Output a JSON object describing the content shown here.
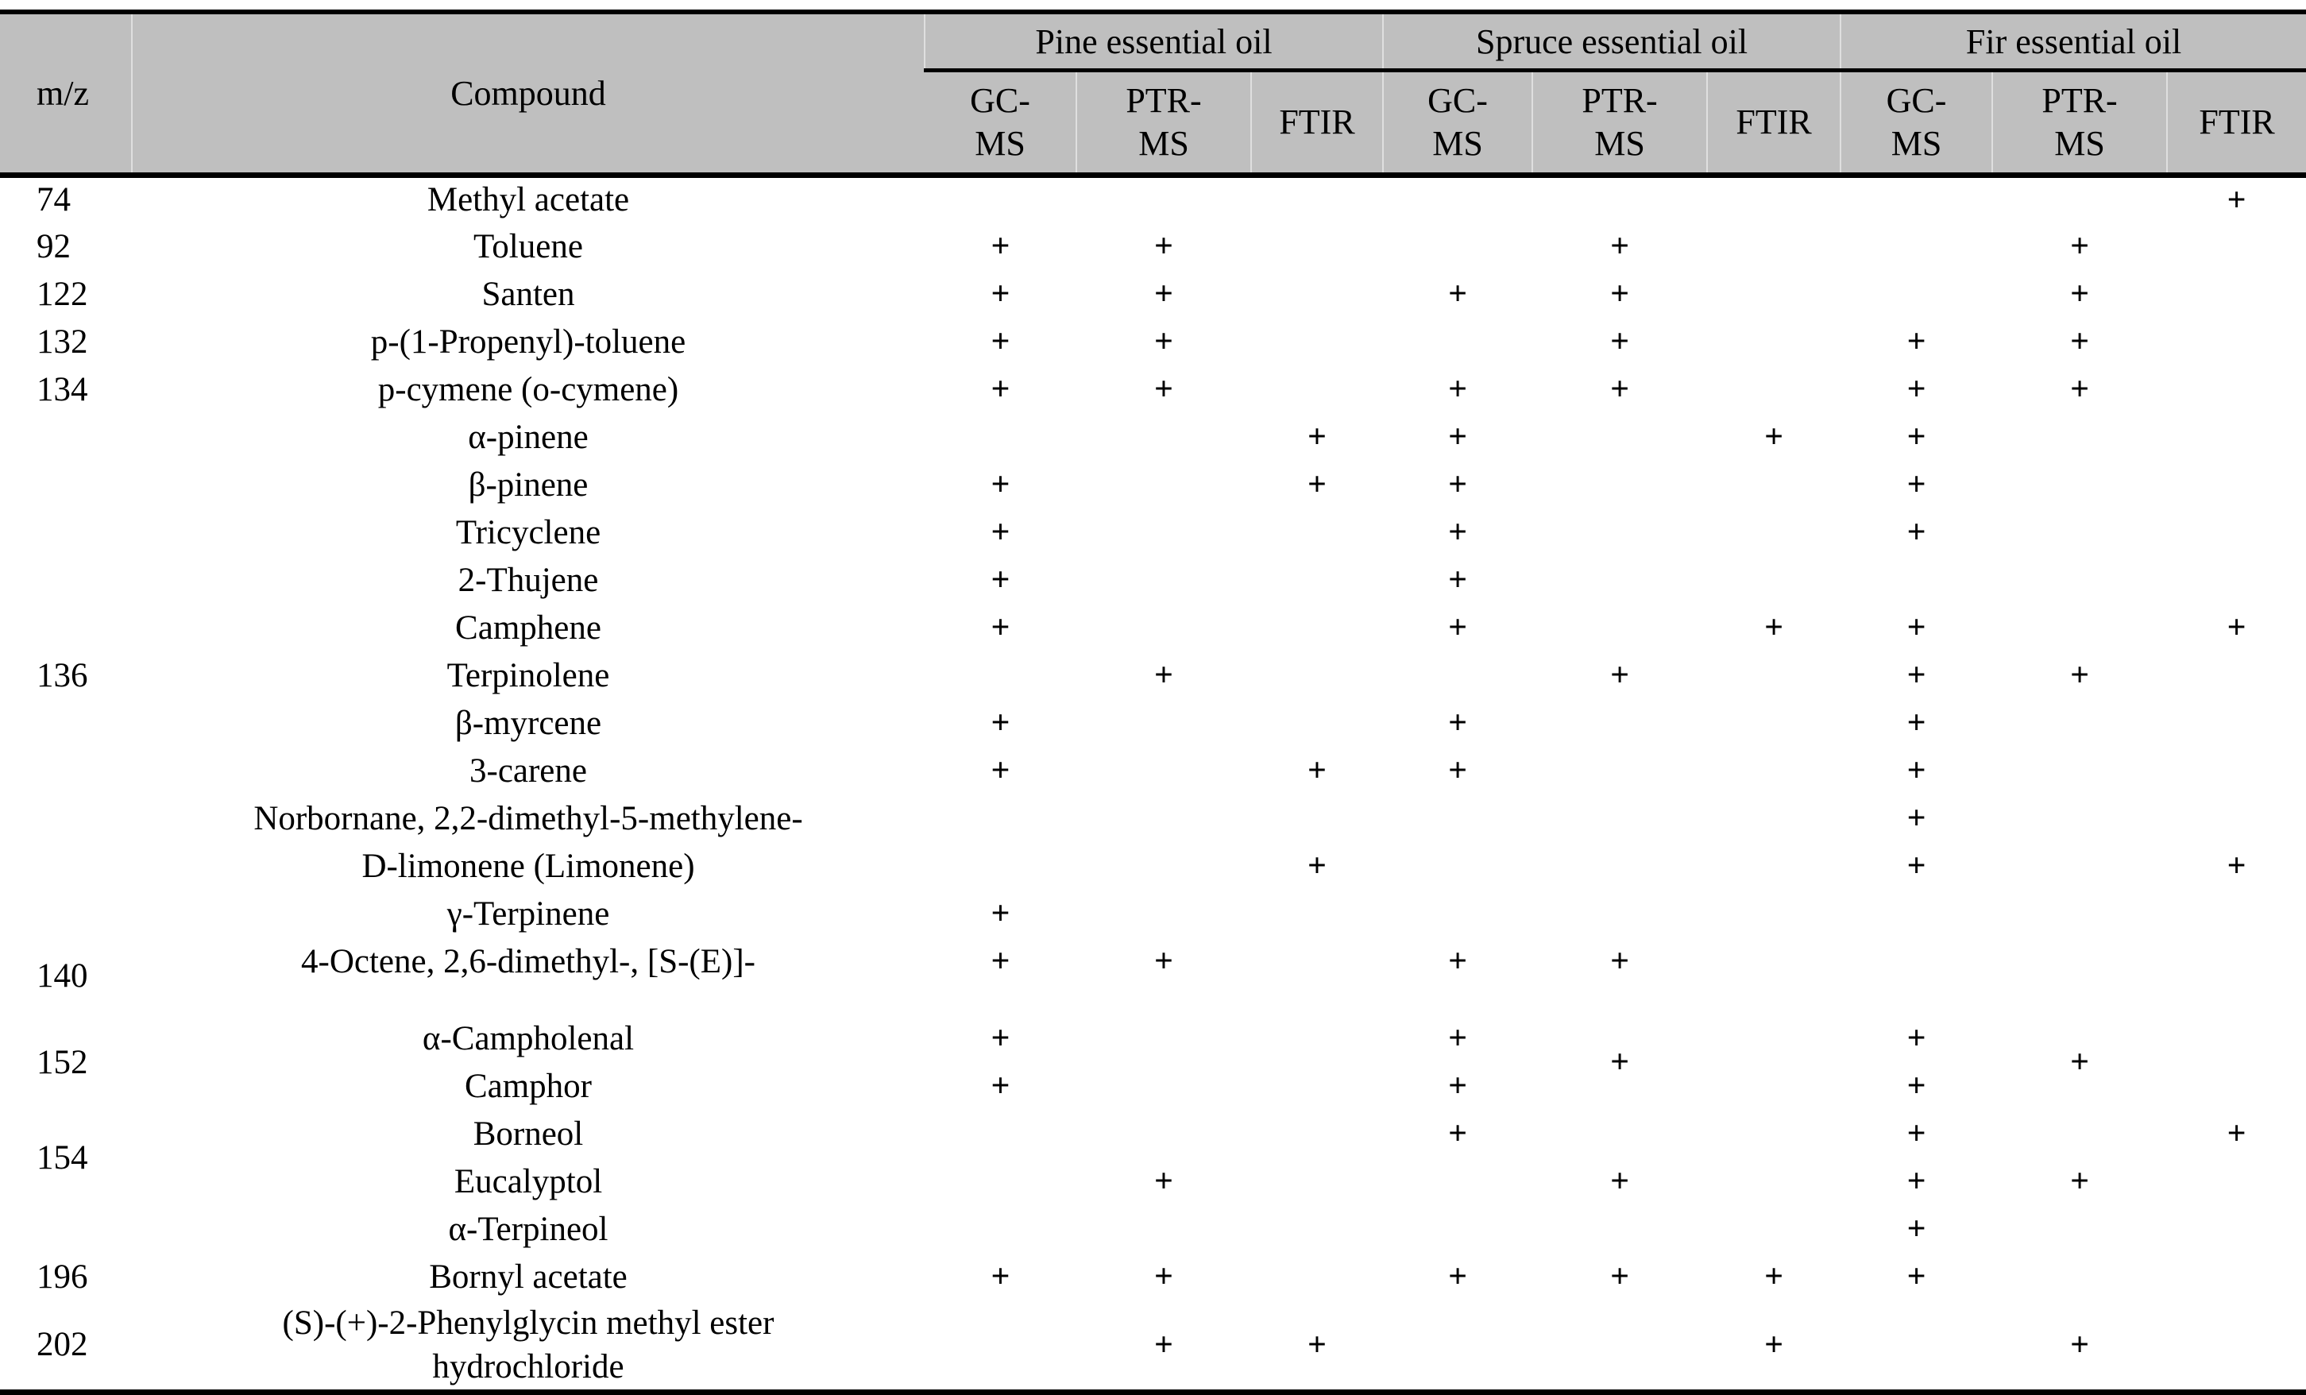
{
  "colors": {
    "header_bg": "#bfbfbf",
    "rule": "#000000",
    "text": "#000000",
    "page_bg": "#ffffff"
  },
  "table": {
    "header": {
      "mz": "m/z",
      "compound": "Compound",
      "groups": [
        "Pine essential oil",
        "Spruce essential oil",
        "Fir essential oil"
      ],
      "methods": [
        [
          "GC-",
          "MS"
        ],
        [
          "PTR-",
          "MS"
        ],
        [
          "FTIR"
        ]
      ]
    },
    "mark_symbol": "+",
    "column_keys": [
      "pine_gcms",
      "pine_ptrms",
      "pine_ftir",
      "spruce_gcms",
      "spruce_ptrms",
      "spruce_ftir",
      "fir_gcms",
      "fir_ptrms",
      "fir_ftir"
    ],
    "rows": [
      {
        "mz": "74",
        "compound": "Methyl acetate",
        "marks": {
          "fir_ftir": "+"
        }
      },
      {
        "mz": "92",
        "compound": "Toluene",
        "marks": {
          "pine_gcms": "+",
          "pine_ptrms": "+",
          "spruce_ptrms": "+",
          "fir_ptrms": "+"
        }
      },
      {
        "mz": "122",
        "compound": "Santen",
        "marks": {
          "pine_gcms": "+",
          "pine_ptrms": "+",
          "spruce_gcms": "+",
          "spruce_ptrms": "+",
          "fir_ptrms": "+"
        }
      },
      {
        "mz": "132",
        "compound": "p-(1-Propenyl)-toluene",
        "marks": {
          "pine_gcms": "+",
          "pine_ptrms": "+",
          "spruce_ptrms": "+",
          "fir_gcms": "+",
          "fir_ptrms": "+"
        }
      },
      {
        "mz": "134",
        "compound": "p-cymene (o-cymene)",
        "marks": {
          "pine_gcms": "+",
          "pine_ptrms": "+",
          "spruce_gcms": "+",
          "spruce_ptrms": "+",
          "fir_gcms": "+",
          "fir_ptrms": "+"
        }
      },
      {
        "mz": "136",
        "mz_rows": 11,
        "compound": "α-pinene",
        "marks": {
          "pine_ftir": "+",
          "spruce_gcms": "+",
          "spruce_ftir": "+",
          "fir_gcms": "+"
        }
      },
      {
        "compound": "β-pinene",
        "marks": {
          "pine_gcms": "+",
          "pine_ftir": "+",
          "spruce_gcms": "+",
          "fir_gcms": "+"
        }
      },
      {
        "compound": "Tricyclene",
        "marks": {
          "pine_gcms": "+",
          "spruce_gcms": "+",
          "fir_gcms": "+"
        }
      },
      {
        "compound": "2-Thujene",
        "marks": {
          "pine_gcms": "+",
          "spruce_gcms": "+"
        }
      },
      {
        "compound": "Camphene",
        "marks": {
          "pine_gcms": "+",
          "spruce_gcms": "+",
          "spruce_ftir": "+",
          "fir_gcms": "+",
          "fir_ftir": "+"
        }
      },
      {
        "compound": "Terpinolene",
        "marks": {
          "pine_ptrms": "+",
          "spruce_ptrms": "+",
          "fir_gcms": "+",
          "fir_ptrms": "+"
        }
      },
      {
        "compound": "β-myrcene",
        "marks": {
          "pine_gcms": "+",
          "spruce_gcms": "+",
          "fir_gcms": "+"
        }
      },
      {
        "compound": "3-carene",
        "marks": {
          "pine_gcms": "+",
          "pine_ftir": "+",
          "spruce_gcms": "+",
          "fir_gcms": "+"
        }
      },
      {
        "compound": "Norbornane, 2,2-dimethyl-5-methylene-",
        "marks": {
          "fir_gcms": "+"
        }
      },
      {
        "compound": "D-limonene (Limonene)",
        "marks": {
          "pine_ftir": "+",
          "fir_gcms": "+",
          "fir_ftir": "+"
        }
      },
      {
        "compound": "γ-Terpinene",
        "marks": {
          "pine_gcms": "+"
        }
      },
      {
        "mz": "140",
        "mz_rows": 2,
        "compound": "4-Octene, 2,6-dimethyl-, [S-(E)]-",
        "marks": {
          "pine_gcms": "+",
          "pine_ptrms": "+",
          "spruce_gcms": "+",
          "spruce_ptrms": "+"
        }
      },
      {
        "spacer": true
      },
      {
        "mz": "152",
        "mz_rows": 2,
        "compound": "α-Campholenal",
        "marks": {
          "pine_gcms": "+",
          "spruce_gcms": "+",
          "fir_gcms": "+",
          "spruce_ptrms": "+",
          "fir_ptrms": "+"
        },
        "mark_rows": {
          "spruce_ptrms": 2,
          "fir_ptrms": 2
        }
      },
      {
        "compound": "Camphor",
        "marks": {
          "pine_gcms": "+",
          "spruce_gcms": "+",
          "fir_gcms": "+"
        }
      },
      {
        "mz": "154",
        "mz_rows": 2,
        "compound": "Borneol",
        "marks": {
          "spruce_gcms": "+",
          "fir_gcms": "+",
          "fir_ftir": "+"
        }
      },
      {
        "compound": "Eucalyptol",
        "marks": {
          "pine_ptrms": "+",
          "spruce_ptrms": "+",
          "fir_gcms": "+",
          "fir_ptrms": "+"
        }
      },
      {
        "mz": "",
        "compound": "α-Terpineol",
        "marks": {
          "fir_gcms": "+"
        }
      },
      {
        "mz": "196",
        "compound": "Bornyl acetate",
        "marks": {
          "pine_gcms": "+",
          "pine_ptrms": "+",
          "spruce_gcms": "+",
          "spruce_ptrms": "+",
          "spruce_ftir": "+",
          "fir_gcms": "+"
        }
      },
      {
        "mz": "202",
        "compound_lines": [
          "(S)-(+)-2-Phenylglycin methyl ester",
          "hydrochloride"
        ],
        "marks": {
          "pine_ptrms": "+",
          "pine_ftir": "+",
          "spruce_ftir": "+",
          "fir_ptrms": "+"
        }
      }
    ]
  }
}
